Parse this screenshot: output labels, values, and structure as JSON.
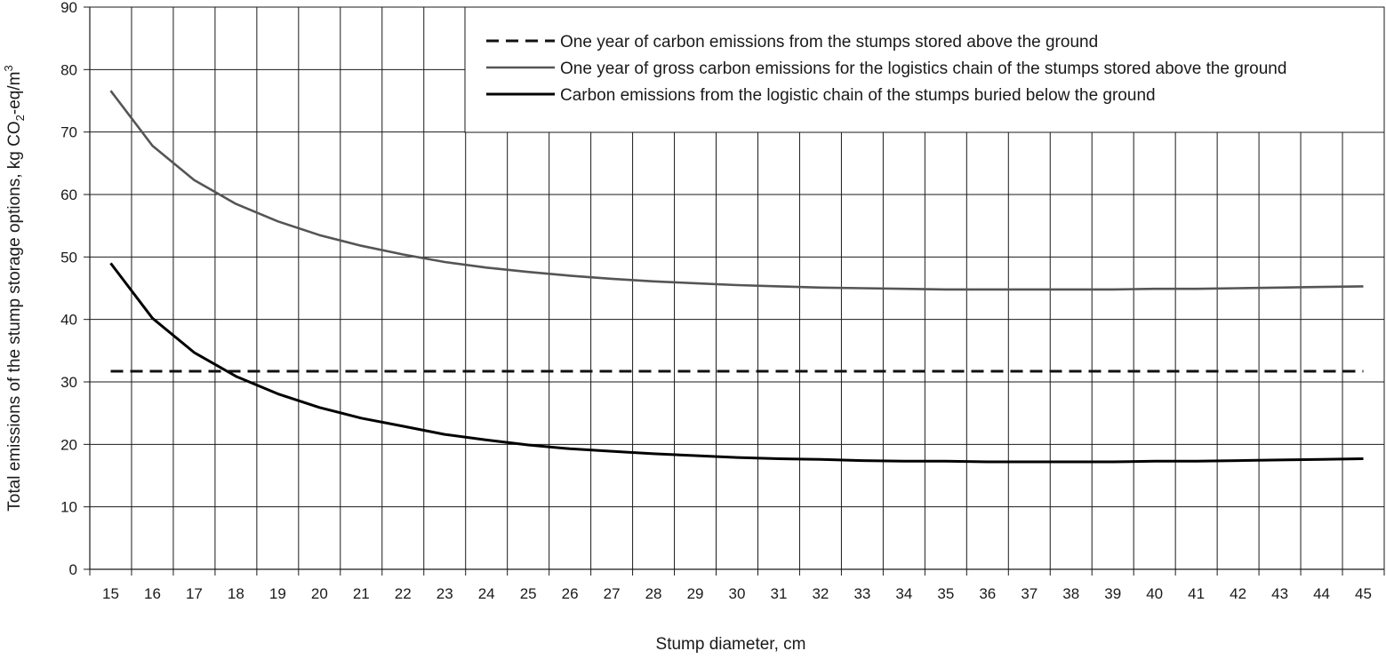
{
  "chart_data": {
    "type": "line",
    "xlabel": "Stump diameter, cm",
    "ylabel": {
      "pre": "Total emissions of the stump storage options, kg CO",
      "sub": "2",
      "mid": "-eq/m",
      "sup": "3"
    },
    "x": [
      15,
      16,
      17,
      18,
      19,
      20,
      21,
      22,
      23,
      24,
      25,
      26,
      27,
      28,
      29,
      30,
      31,
      32,
      33,
      34,
      35,
      36,
      37,
      38,
      39,
      40,
      41,
      42,
      43,
      44,
      45
    ],
    "xlim": [
      14.5,
      45.5
    ],
    "ylim": [
      0,
      90
    ],
    "yticks": [
      0,
      10,
      20,
      30,
      40,
      50,
      60,
      70,
      80,
      90
    ],
    "grid": true,
    "legend_position": "top-right",
    "series": [
      {
        "name": "One year of carbon emissions from the stumps stored above the ground",
        "color": "#111111",
        "style": "dashed",
        "values": [
          31.7,
          31.7,
          31.7,
          31.7,
          31.7,
          31.7,
          31.7,
          31.7,
          31.7,
          31.7,
          31.7,
          31.7,
          31.7,
          31.7,
          31.7,
          31.7,
          31.7,
          31.7,
          31.7,
          31.7,
          31.7,
          31.7,
          31.7,
          31.7,
          31.7,
          31.7,
          31.7,
          31.7,
          31.7,
          31.7,
          31.7
        ]
      },
      {
        "name": "One year of gross carbon emissions for the logistics chain of the stumps stored above the ground",
        "color": "#555555",
        "style": "solid",
        "values": [
          76.6,
          67.8,
          62.3,
          58.5,
          55.7,
          53.5,
          51.8,
          50.4,
          49.2,
          48.3,
          47.6,
          47.0,
          46.5,
          46.1,
          45.8,
          45.5,
          45.3,
          45.1,
          45.0,
          44.9,
          44.8,
          44.8,
          44.8,
          44.8,
          44.8,
          44.9,
          44.9,
          45.0,
          45.1,
          45.2,
          45.3
        ]
      },
      {
        "name": "Carbon emissions from the logistic chain of the stumps buried below the ground",
        "color": "#000000",
        "style": "solid",
        "values": [
          49.0,
          40.2,
          34.7,
          30.9,
          28.1,
          25.9,
          24.2,
          22.9,
          21.6,
          20.7,
          19.9,
          19.3,
          18.9,
          18.5,
          18.2,
          17.9,
          17.7,
          17.6,
          17.4,
          17.3,
          17.3,
          17.2,
          17.2,
          17.2,
          17.2,
          17.3,
          17.3,
          17.4,
          17.5,
          17.6,
          17.7
        ]
      }
    ]
  }
}
